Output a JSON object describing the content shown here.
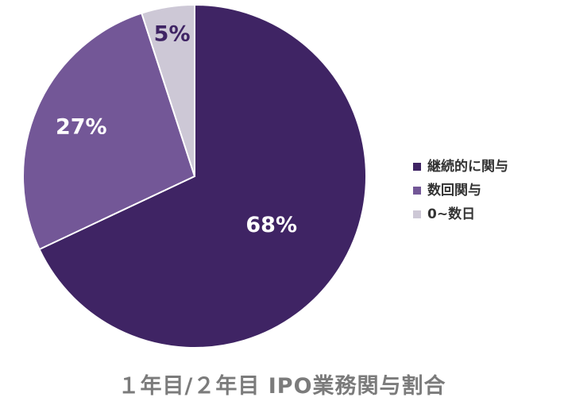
{
  "chart_data": {
    "type": "pie",
    "title": "１年目/２年目 IPO業務関与割合",
    "slices": [
      {
        "name": "継続的に関与",
        "value": 68,
        "label": "68%",
        "color": "#3f2464",
        "label_color": "#ffffff"
      },
      {
        "name": "数回関与",
        "value": 27,
        "label": "27%",
        "color": "#735797",
        "label_color": "#ffffff"
      },
      {
        "name": "0~数日",
        "value": 5,
        "label": "5%",
        "color": "#cdc8d6",
        "label_color": "#3f2464"
      }
    ],
    "legend_position": "right",
    "start_angle": "12 o'clock",
    "direction": "clockwise"
  }
}
